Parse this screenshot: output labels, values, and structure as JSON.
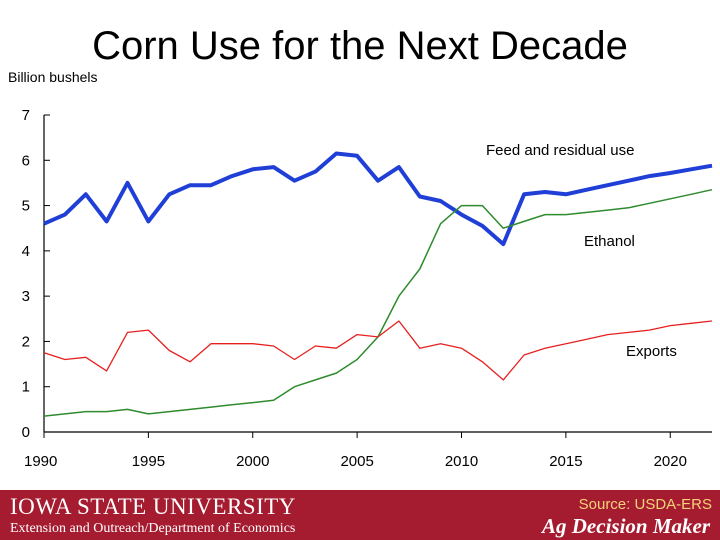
{
  "slide": {
    "title": "Corn Use for the Next Decade",
    "footer_university": "IOWA STATE UNIVERSITY",
    "footer_department": "Extension and Outreach/Department of Economics",
    "footer_source": "Source: USDA-ERS",
    "footer_brand": "Ag Decision Maker"
  },
  "chart_data": {
    "type": "line",
    "title": "",
    "ylabel": "Billion bushels",
    "xlabel": "",
    "xlim": [
      1990,
      2022
    ],
    "ylim": [
      0,
      7
    ],
    "x_ticks": [
      1990,
      1995,
      2000,
      2005,
      2010,
      2015,
      2020
    ],
    "y_ticks": [
      0,
      1,
      2,
      3,
      4,
      5,
      6,
      7
    ],
    "grid": false,
    "x": [
      1990,
      1991,
      1992,
      1993,
      1994,
      1995,
      1996,
      1997,
      1998,
      1999,
      2000,
      2001,
      2002,
      2003,
      2004,
      2005,
      2006,
      2007,
      2008,
      2009,
      2010,
      2011,
      2012,
      2013,
      2014,
      2015,
      2016,
      2017,
      2018,
      2019,
      2020,
      2021,
      2022
    ],
    "series": [
      {
        "name": "Feed and residual use",
        "color": "#1f3fd6",
        "values": [
          4.6,
          4.8,
          5.25,
          4.65,
          5.5,
          4.65,
          5.25,
          5.45,
          5.45,
          5.65,
          5.8,
          5.85,
          5.55,
          5.75,
          6.15,
          6.1,
          5.55,
          5.85,
          5.2,
          5.1,
          4.8,
          4.55,
          4.15,
          5.25,
          5.3,
          5.25,
          5.35,
          5.45,
          5.55,
          5.65,
          5.72,
          5.8,
          5.88
        ]
      },
      {
        "name": "Ethanol",
        "color": "#2e8b2e",
        "values": [
          0.35,
          0.4,
          0.45,
          0.45,
          0.5,
          0.4,
          0.45,
          0.5,
          0.55,
          0.6,
          0.65,
          0.7,
          1.0,
          1.15,
          1.3,
          1.6,
          2.1,
          3.0,
          3.6,
          4.6,
          5.0,
          5.0,
          4.5,
          4.65,
          4.8,
          4.8,
          4.85,
          4.9,
          4.95,
          5.05,
          5.15,
          5.25,
          5.35
        ]
      },
      {
        "name": "Exports",
        "color": "#e62020",
        "values": [
          1.75,
          1.6,
          1.65,
          1.35,
          2.2,
          2.25,
          1.8,
          1.55,
          1.95,
          1.95,
          1.95,
          1.9,
          1.6,
          1.9,
          1.85,
          2.15,
          2.1,
          2.45,
          1.85,
          1.95,
          1.85,
          1.55,
          1.15,
          1.7,
          1.85,
          1.95,
          2.05,
          2.15,
          2.2,
          2.25,
          2.35,
          2.4,
          2.45
        ]
      }
    ],
    "legend": "inline labels at right"
  }
}
